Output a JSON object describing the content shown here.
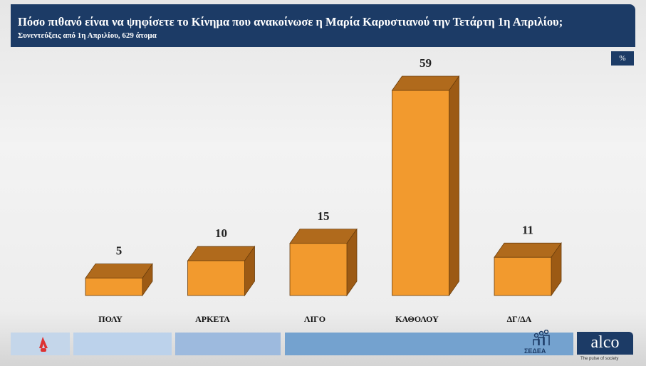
{
  "header": {
    "title": "Πόσο πιθανό είναι να ψηφίσετε το Κίνημα που ανακοίνωσε η Μαρία Καρυστιανού την Τετάρτη 1η Απριλίου;",
    "subtitle": "Συνεντεύξεις από 1η Απριλίου, 629 άτομα"
  },
  "unit_badge": "%",
  "chart_data": {
    "type": "bar",
    "title": "Πόσο πιθανό είναι να ψηφίσετε το Κίνημα που ανακοίνωσε η Μαρία Καρυστιανού την Τετάρτη 1η Απριλίου;",
    "subtitle": "Συνεντεύξεις από 1η Απριλίου, 629 άτομα",
    "categories": [
      "ΠΟΛΥ",
      "ΑΡΚΕΤΑ",
      "ΛΙΓΟ",
      "ΚΑΘΟΛΟΥ",
      "ΔΓ/ΔΑ"
    ],
    "values": [
      5,
      10,
      15,
      59,
      11
    ],
    "unit": "%",
    "ylim": [
      0,
      59
    ],
    "grid": false,
    "style": "3d",
    "colors": {
      "front": "#f29a2e",
      "top": "#b06a1c",
      "side": "#9c5a14"
    }
  },
  "footer": {
    "sedea_label": "ΣΕΔΕΑ",
    "alco_logo": "alco",
    "alco_tagline": "The pulse of society"
  }
}
